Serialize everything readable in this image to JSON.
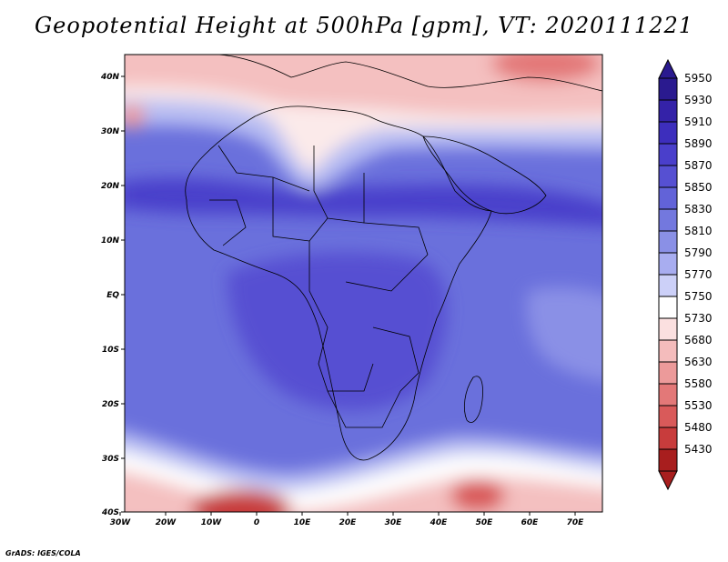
{
  "title": "Geopotential Height at 500hPa [gpm], VT: 2020111221",
  "credit": "GrADS: IGES/COLA",
  "map": {
    "x_ticks": [
      "30W",
      "20W",
      "10W",
      "0",
      "10E",
      "20E",
      "30E",
      "40E",
      "50E",
      "60E",
      "70E"
    ],
    "y_ticks": [
      "40N",
      "30N",
      "20N",
      "10N",
      "EQ",
      "10S",
      "20S",
      "30S",
      "40S"
    ],
    "lon_range": [
      -30,
      75
    ],
    "lat_range": [
      -40,
      44
    ]
  },
  "colorbar": {
    "levels": [
      "5950",
      "5930",
      "5910",
      "5890",
      "5870",
      "5850",
      "5830",
      "5810",
      "5790",
      "5770",
      "5750",
      "5730",
      "5680",
      "5630",
      "5580",
      "5530",
      "5480",
      "5430"
    ],
    "colors": [
      "#2a1a8f",
      "#3422a8",
      "#3d2ebd",
      "#4a3fcb",
      "#5650d2",
      "#6263d8",
      "#7378de",
      "#8a90e6",
      "#a8adf0",
      "#ccd0f8",
      "#ffffff",
      "#fbe0e0",
      "#f4bcbc",
      "#ec9a9a",
      "#e37878",
      "#d95a5a",
      "#c83c3c",
      "#a81e1e"
    ]
  }
}
